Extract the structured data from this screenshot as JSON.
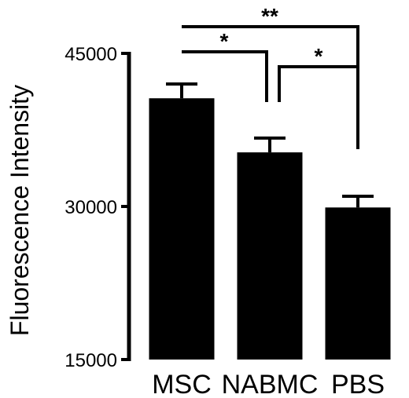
{
  "chart_data": {
    "type": "bar",
    "title": "",
    "xlabel": "",
    "ylabel": "Fluorescence Intensity",
    "ylim": [
      15000,
      45000
    ],
    "yticks": [
      15000,
      30000,
      45000
    ],
    "ytick_labels": [
      "15000",
      "30000",
      "45000"
    ],
    "grid": false,
    "legend": "none",
    "categories": [
      "MSC",
      "NABMC",
      "PBS"
    ],
    "values": [
      40600,
      35300,
      29900
    ],
    "errors": [
      1400,
      1400,
      1100
    ],
    "bar_color": "#000000",
    "significance": [
      {
        "from": "MSC",
        "to": "PBS",
        "label": "**"
      },
      {
        "from": "MSC",
        "to": "NABMC",
        "label": "*"
      },
      {
        "from": "NABMC",
        "to": "PBS",
        "label": "*"
      }
    ]
  }
}
